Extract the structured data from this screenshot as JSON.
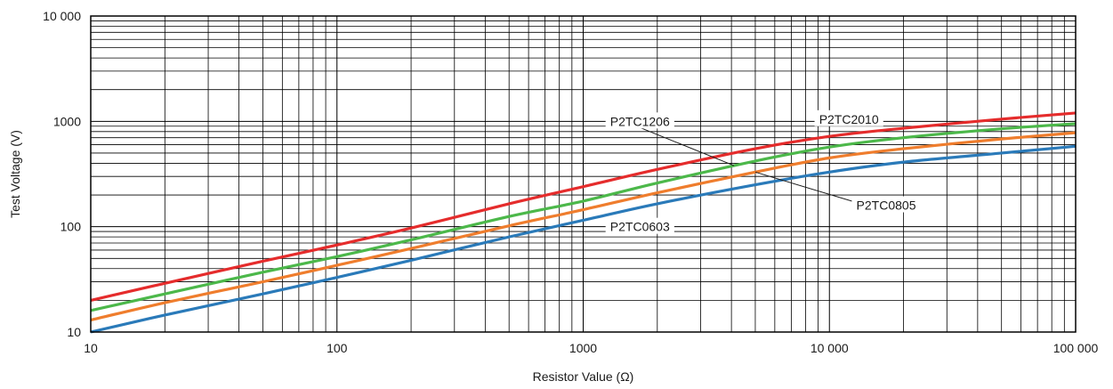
{
  "chart_data": {
    "type": "line",
    "title": "",
    "xlabel": "Resistor Value (Ω)",
    "ylabel": "Test Voltage (V)",
    "x_scale": "log",
    "y_scale": "log",
    "xlim": [
      10,
      100000
    ],
    "ylim": [
      10,
      10000
    ],
    "grid": true,
    "x_ticks": [
      {
        "value": 10,
        "label": "10"
      },
      {
        "value": 100,
        "label": "100"
      },
      {
        "value": 1000,
        "label": "1000"
      },
      {
        "value": 10000,
        "label": "10 000"
      },
      {
        "value": 100000,
        "label": "100 000"
      }
    ],
    "y_ticks": [
      {
        "value": 10,
        "label": "10"
      },
      {
        "value": 100,
        "label": "100"
      },
      {
        "value": 1000,
        "label": "1000"
      },
      {
        "value": 10000,
        "label": "10 000"
      }
    ],
    "series": [
      {
        "name": "P2TC0603",
        "color": "#2a7ab9",
        "x": [
          10,
          20,
          50,
          100,
          200,
          500,
          1000,
          2000,
          5000,
          10000,
          20000,
          50000,
          100000
        ],
        "y": [
          10,
          14.5,
          23,
          33,
          48,
          80,
          115,
          165,
          250,
          330,
          410,
          500,
          580
        ]
      },
      {
        "name": "P2TC0805",
        "color": "#ef7d2d",
        "x": [
          10,
          20,
          50,
          100,
          200,
          500,
          1000,
          2000,
          5000,
          10000,
          20000,
          50000,
          100000
        ],
        "y": [
          13,
          19,
          30,
          43,
          62,
          102,
          145,
          210,
          330,
          450,
          550,
          680,
          780
        ]
      },
      {
        "name": "P2TC1206",
        "color": "#4cb84a",
        "x": [
          10,
          20,
          50,
          100,
          200,
          500,
          1000,
          2000,
          5000,
          10000,
          20000,
          50000,
          100000
        ],
        "y": [
          16,
          23,
          37,
          52,
          75,
          125,
          175,
          260,
          420,
          570,
          700,
          850,
          950
        ]
      },
      {
        "name": "P2TC2010",
        "color": "#e52c2c",
        "x": [
          10,
          20,
          50,
          100,
          200,
          500,
          1000,
          2000,
          5000,
          10000,
          20000,
          50000,
          100000
        ],
        "y": [
          20,
          29,
          47,
          67,
          97,
          165,
          240,
          350,
          550,
          720,
          860,
          1050,
          1200
        ]
      }
    ],
    "annotations": [
      {
        "text": "P2TC1206",
        "series": "P2TC1206",
        "text_x": 1700,
        "text_y": 1000,
        "point_x": 4100,
        "point_y": 380
      },
      {
        "text": "P2TC2010",
        "series": "P2TC2010",
        "text_x": 12000,
        "text_y": 1050,
        "point_x": null,
        "point_y": null
      },
      {
        "text": "P2TC0805",
        "series": "P2TC0805",
        "text_x": 17000,
        "text_y": 160,
        "point_x": 5000,
        "point_y": 330
      },
      {
        "text": "P2TC0603",
        "series": "P2TC0603",
        "text_x": 1700,
        "text_y": 100,
        "point_x": null,
        "point_y": null
      }
    ]
  }
}
